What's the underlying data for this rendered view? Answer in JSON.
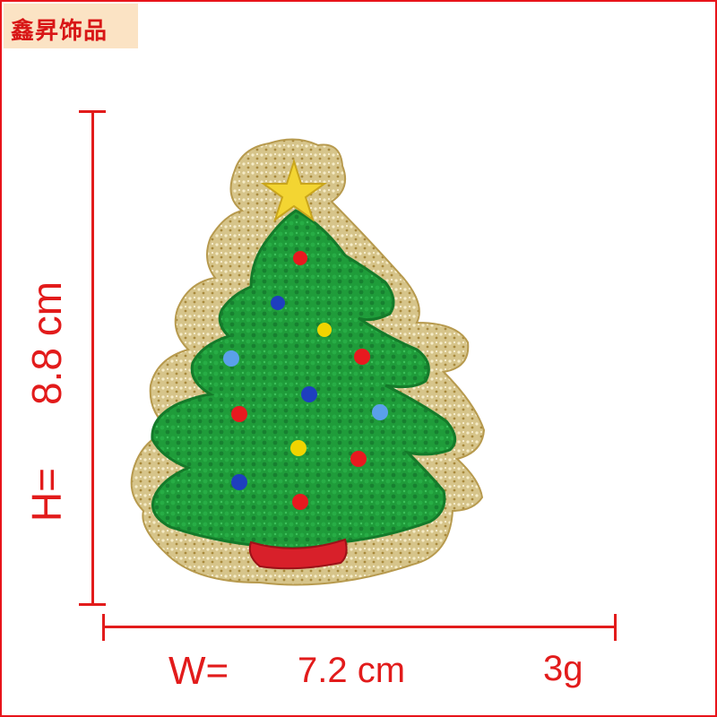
{
  "brand": {
    "text": "鑫昇饰品"
  },
  "dimensions": {
    "height_prefix": "H=",
    "height_value": "8.8 cm",
    "width_prefix": "W=",
    "width_value": "7.2 cm",
    "weight": "3g"
  },
  "product": {
    "subject": "christmas-tree-patch",
    "colors": {
      "tree": "#1f9c3a",
      "tree_dark": "#147a2a",
      "glitter": "#d8c58a",
      "star": "#f3d532",
      "pot": "#d8202a",
      "accent_red": "#e8141b"
    },
    "ornament_colors": [
      "#e8191f",
      "#1e3fbf",
      "#f0d400",
      "#5aa0ea"
    ]
  }
}
